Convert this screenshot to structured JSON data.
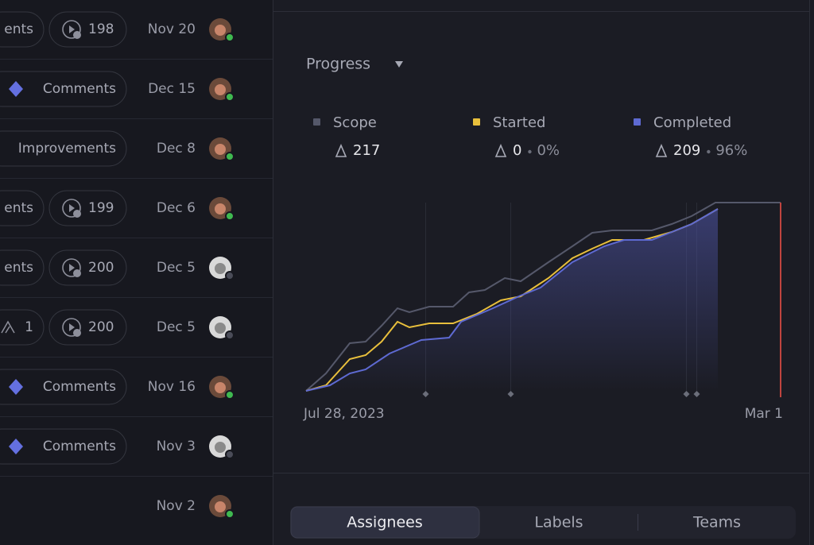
{
  "issues": {
    "rows": [
      {
        "label": "ents",
        "count": "198",
        "date": "Nov 20"
      },
      {
        "label": "Comments",
        "date": "Dec 15"
      },
      {
        "label": "Improvements",
        "date": "Dec 8"
      },
      {
        "label": "ents",
        "count": "199",
        "date": "Dec 6"
      },
      {
        "label": "ents",
        "count": "200",
        "date": "Dec 5"
      },
      {
        "label": "1",
        "count": "200",
        "date": "Dec 5"
      },
      {
        "label": "Comments",
        "date": "Nov 16"
      },
      {
        "label": "Comments",
        "date": "Nov 3"
      },
      {
        "date": "Nov 2"
      }
    ]
  },
  "progress": {
    "title": "Progress",
    "legend": [
      {
        "name": "Scope",
        "value": "217"
      },
      {
        "name": "Started",
        "value": "0",
        "percent": "0%"
      },
      {
        "name": "Completed",
        "value": "209",
        "percent": "96%"
      }
    ],
    "x_start": "Jul 28, 2023",
    "x_end": "Mar 1"
  },
  "tabs": [
    "Assignees",
    "Labels",
    "Teams"
  ]
}
